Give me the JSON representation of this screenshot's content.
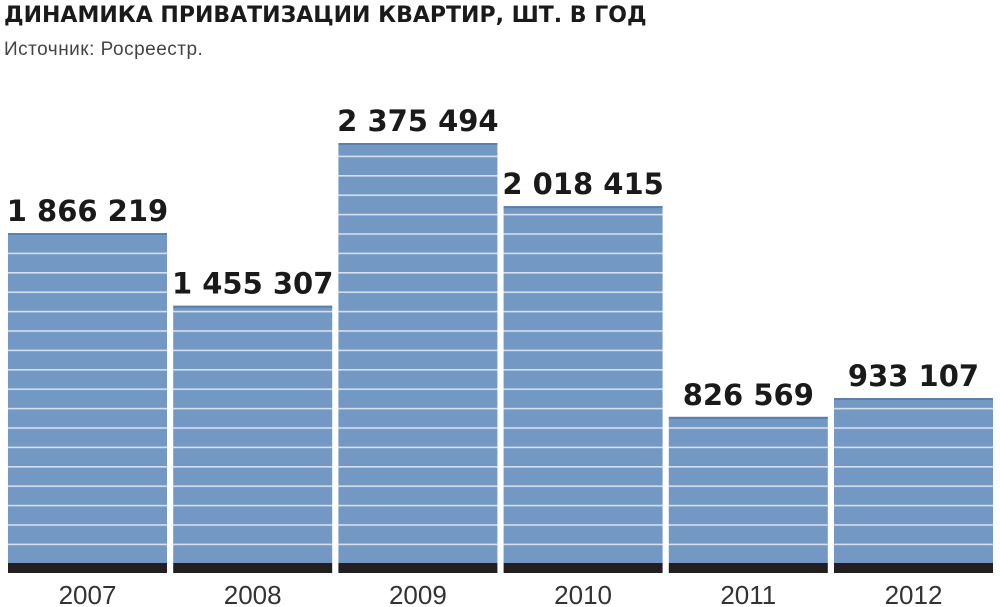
{
  "chart_data": {
    "type": "bar",
    "title": "ДИНАМИКА ПРИВАТИЗАЦИИ КВАРТИР, ШТ. В ГОД",
    "subtitle": "Источник: Росреестр.",
    "categories": [
      "2007",
      "2008",
      "2009",
      "2010",
      "2011",
      "2012"
    ],
    "values": [
      1866219,
      1455307,
      2375494,
      2018415,
      826569,
      933107
    ],
    "value_labels": [
      "1 866 219",
      "1 455 307",
      "2 375 494",
      "2 018 415",
      "826 569",
      "933 107"
    ],
    "color": "#7398c3"
  }
}
